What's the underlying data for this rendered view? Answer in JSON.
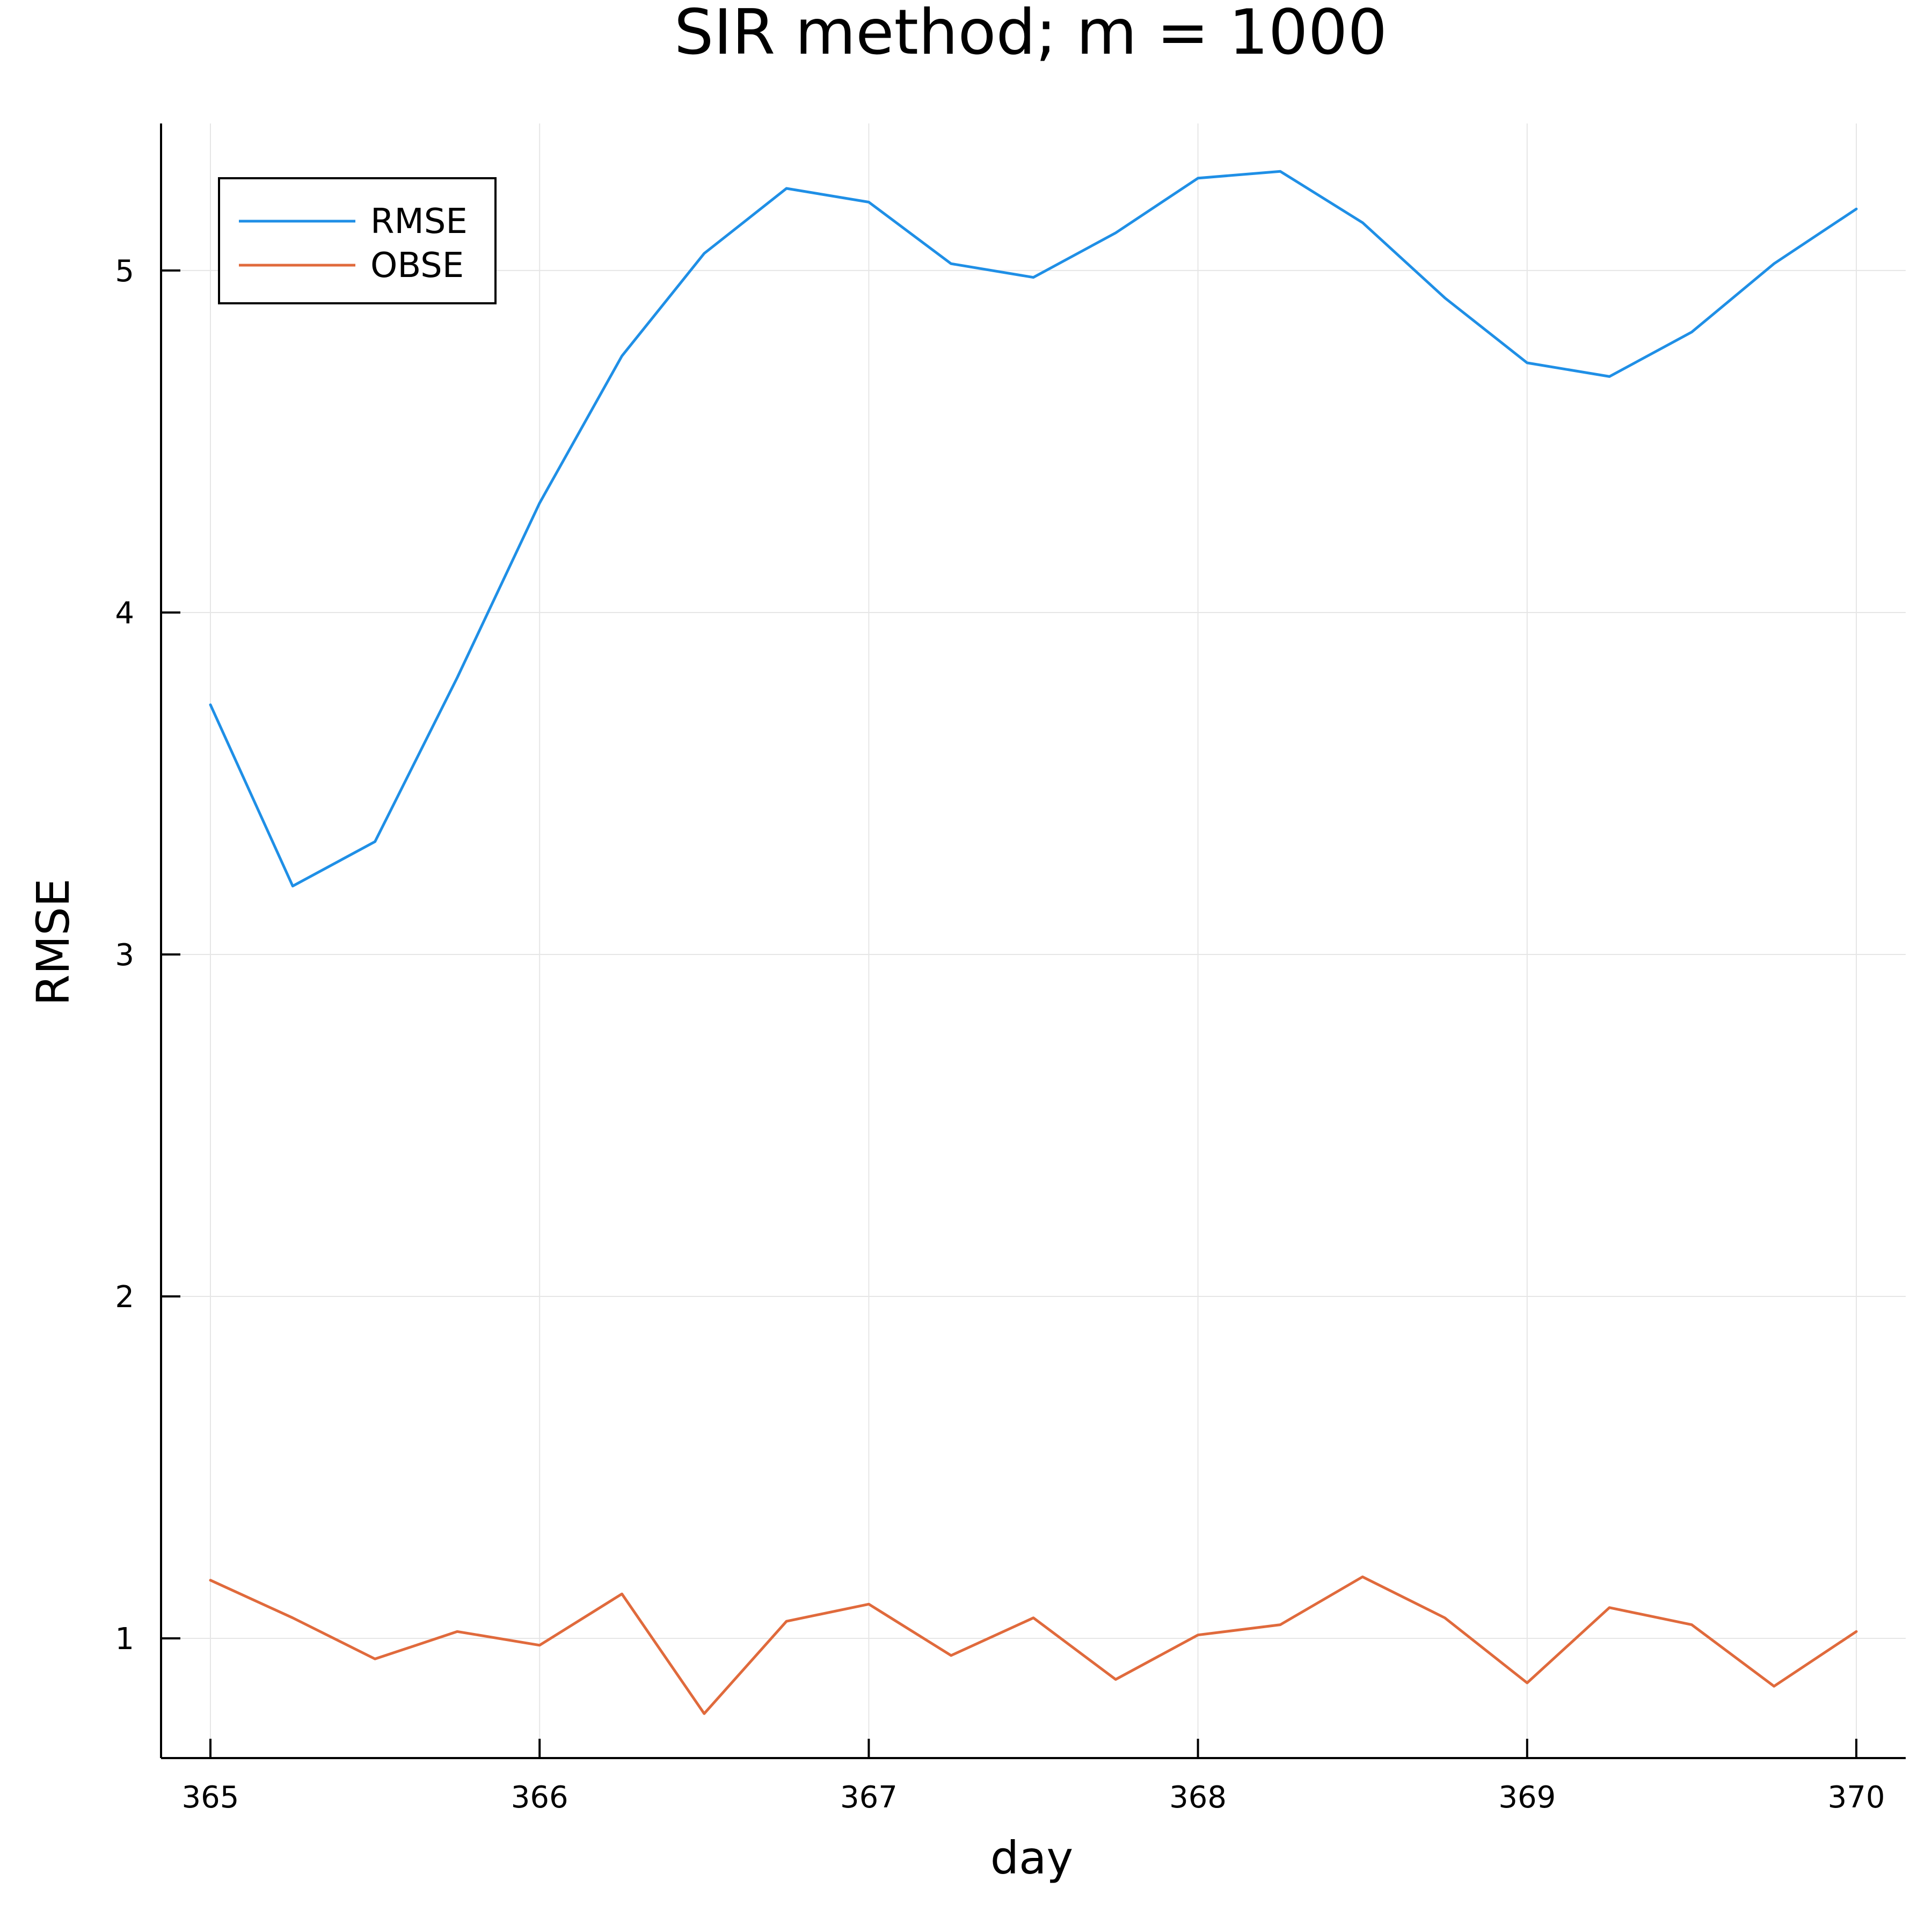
{
  "chart_data": {
    "type": "line",
    "title": "SIR method; m = 1000",
    "xlabel": "day",
    "ylabel": "RMSE",
    "xlim": [
      364.85,
      370.15
    ],
    "ylim": [
      0.65,
      5.43
    ],
    "xticks": [
      365,
      366,
      367,
      368,
      369,
      370
    ],
    "yticks": [
      1,
      2,
      3,
      4,
      5
    ],
    "grid": true,
    "legend": "top-left",
    "x": [
      365,
      365.25,
      365.5,
      365.75,
      366,
      366.25,
      366.5,
      366.75,
      367,
      367.25,
      367.5,
      367.75,
      368,
      368.25,
      368.5,
      368.75,
      369,
      369.25,
      369.5,
      369.75,
      370
    ],
    "series": [
      {
        "name": "RMSE",
        "color": "#1f8fe6",
        "values": [
          3.73,
          3.2,
          3.33,
          3.81,
          4.32,
          4.75,
          5.05,
          5.24,
          5.2,
          5.02,
          4.98,
          5.11,
          5.27,
          5.29,
          5.14,
          4.92,
          4.73,
          4.69,
          4.82,
          5.02,
          5.18
        ]
      },
      {
        "name": "OBSE",
        "color": "#e06a3c",
        "values": [
          1.17,
          1.06,
          0.94,
          1.02,
          0.98,
          1.13,
          0.78,
          1.05,
          1.1,
          0.95,
          1.06,
          0.88,
          1.01,
          1.04,
          1.18,
          1.06,
          0.87,
          1.09,
          1.04,
          0.86,
          1.02
        ]
      }
    ]
  }
}
